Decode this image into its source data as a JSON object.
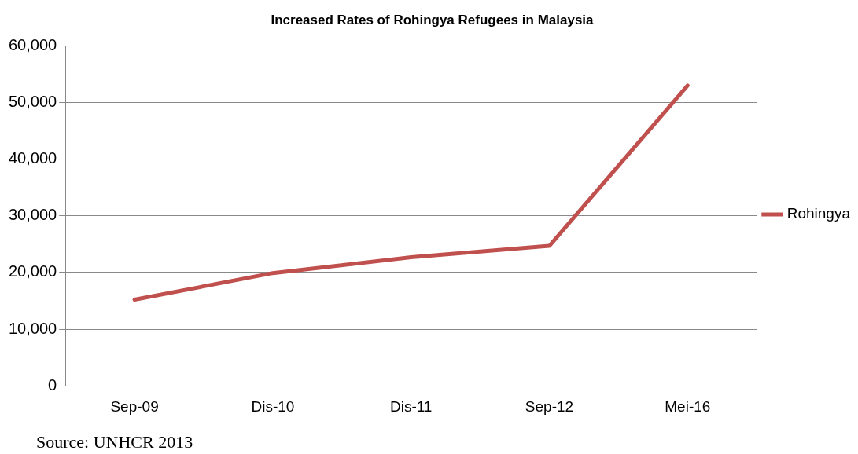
{
  "chart_data": {
    "type": "line",
    "title": "Increased Rates of Rohingya Refugees in Malaysia",
    "categories": [
      "Sep-09",
      "Dis-10",
      "Dis-11",
      "Sep-12",
      "Mei-16"
    ],
    "series": [
      {
        "name": "Rohingya",
        "color": "#c0504d",
        "values": [
          15200,
          19900,
          22700,
          24700,
          53000
        ]
      }
    ],
    "ylim": [
      0,
      60000
    ],
    "yticks": [
      {
        "value": 0,
        "label": "0"
      },
      {
        "value": 10000,
        "label": "10,000"
      },
      {
        "value": 20000,
        "label": "20,000"
      },
      {
        "value": 30000,
        "label": "30,000"
      },
      {
        "value": 40000,
        "label": "40,000"
      },
      {
        "value": 50000,
        "label": "50,000"
      },
      {
        "value": 60000,
        "label": "60,000"
      }
    ],
    "grid": "y",
    "legend": "right",
    "marker": "none",
    "line_style": "solid",
    "annotations": [
      "Source: UNHCR 2013"
    ]
  }
}
